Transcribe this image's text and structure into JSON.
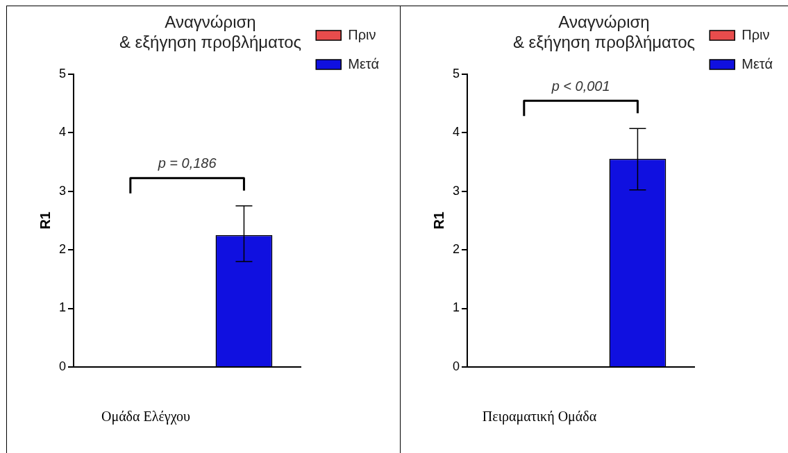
{
  "chart_data": [
    {
      "type": "bar",
      "title": "Αναγνώριση\n& εξήγηση προβλήματος",
      "ylabel": "R1",
      "xlabel": "Ομάδα Ελέγχου",
      "categories": [
        null
      ],
      "series": [
        {
          "name": "Πριν",
          "color": "#e84c4c",
          "values": [
            0
          ]
        },
        {
          "name": "Μετά",
          "color": "#1010e0",
          "values": [
            2.25
          ],
          "errors": [
            [
              1.8,
              2.75
            ]
          ]
        }
      ],
      "ylim": [
        0,
        5
      ],
      "yticks": [
        0,
        1,
        2,
        3,
        4,
        5
      ],
      "grid": false,
      "legend": "top right",
      "annotations": [
        "p = 0,186"
      ]
    },
    {
      "type": "bar",
      "title": "Αναγνώριση\n& εξήγηση προβλήματος",
      "ylabel": "R1",
      "xlabel": "Πειραματική Ομάδα",
      "categories": [
        null
      ],
      "series": [
        {
          "name": "Πριν",
          "color": "#e84c4c",
          "values": [
            0
          ]
        },
        {
          "name": "Μετά",
          "color": "#1010e0",
          "values": [
            3.55
          ],
          "errors": [
            [
              3.02,
              4.07
            ]
          ]
        }
      ],
      "ylim": [
        0,
        5
      ],
      "yticks": [
        0,
        1,
        2,
        3,
        4,
        5
      ],
      "grid": false,
      "legend": "top right",
      "annotations": [
        "p < 0,001"
      ]
    }
  ]
}
